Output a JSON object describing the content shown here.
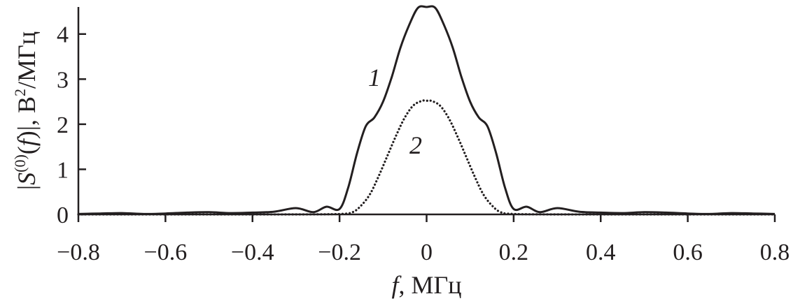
{
  "chart_data": {
    "type": "line",
    "xlabel_var": "f",
    "xlabel_rest": ", МГц",
    "ylabel_prefix": "|",
    "ylabel_var": "S",
    "ylabel_sup": "(0)",
    "ylabel_mid1": "(",
    "ylabel_var2": "f",
    "ylabel_mid2": ")|, В",
    "ylabel_sup2": "2",
    "ylabel_tail": "/МГц",
    "xlim": [
      -0.8,
      0.8
    ],
    "ylim": [
      0,
      4.6
    ],
    "xticks": [
      "−0.8",
      "−0.6",
      "−0.4",
      "−0.2",
      "0",
      "0.2",
      "0.4",
      "0.6",
      "0.8"
    ],
    "xtick_values": [
      -0.8,
      -0.6,
      -0.4,
      -0.2,
      0,
      0.2,
      0.4,
      0.6,
      0.8
    ],
    "yticks": [
      "0",
      "1",
      "2",
      "3",
      "4"
    ],
    "ytick_values": [
      0,
      1,
      2,
      3,
      4
    ],
    "grid": false,
    "legend": "none",
    "series": [
      {
        "name": "1",
        "style": "solid",
        "color": "#231f20",
        "x": [
          -0.8,
          -0.75,
          -0.7,
          -0.65,
          -0.6,
          -0.55,
          -0.5,
          -0.45,
          -0.4,
          -0.35,
          -0.3,
          -0.26,
          -0.23,
          -0.2,
          -0.18,
          -0.16,
          -0.14,
          -0.12,
          -0.1,
          -0.08,
          -0.06,
          -0.04,
          -0.02,
          0,
          0.02,
          0.04,
          0.06,
          0.08,
          0.1,
          0.12,
          0.14,
          0.16,
          0.18,
          0.2,
          0.23,
          0.26,
          0.3,
          0.35,
          0.4,
          0.45,
          0.5,
          0.55,
          0.6,
          0.65,
          0.7,
          0.75,
          0.8
        ],
        "y": [
          0.01,
          0.02,
          0.03,
          0.01,
          0.02,
          0.04,
          0.05,
          0.03,
          0.04,
          0.06,
          0.14,
          0.05,
          0.17,
          0.12,
          0.6,
          1.35,
          1.95,
          2.15,
          2.5,
          3.05,
          3.7,
          4.2,
          4.58,
          4.6,
          4.58,
          4.2,
          3.7,
          3.05,
          2.5,
          2.15,
          1.95,
          1.35,
          0.6,
          0.12,
          0.17,
          0.05,
          0.14,
          0.06,
          0.04,
          0.03,
          0.05,
          0.04,
          0.02,
          0.01,
          0.03,
          0.02,
          0.01
        ]
      },
      {
        "name": "2",
        "style": "dotted",
        "color": "#231f20",
        "x": [
          -0.8,
          -0.5,
          -0.3,
          -0.2,
          -0.17,
          -0.15,
          -0.13,
          -0.11,
          -0.09,
          -0.07,
          -0.05,
          -0.03,
          -0.01,
          0,
          0.01,
          0.03,
          0.05,
          0.07,
          0.09,
          0.11,
          0.13,
          0.15,
          0.17,
          0.2,
          0.3,
          0.5,
          0.8
        ],
        "y": [
          0,
          0,
          0,
          0.01,
          0.05,
          0.2,
          0.45,
          0.85,
          1.3,
          1.75,
          2.15,
          2.42,
          2.52,
          2.52,
          2.52,
          2.42,
          2.15,
          1.75,
          1.3,
          0.85,
          0.45,
          0.2,
          0.05,
          0.01,
          0,
          0,
          0
        ]
      }
    ],
    "annotations": [
      {
        "text": "1",
        "x": -0.12,
        "y": 2.85
      },
      {
        "text": "2",
        "x": -0.025,
        "y": 1.35
      }
    ]
  }
}
